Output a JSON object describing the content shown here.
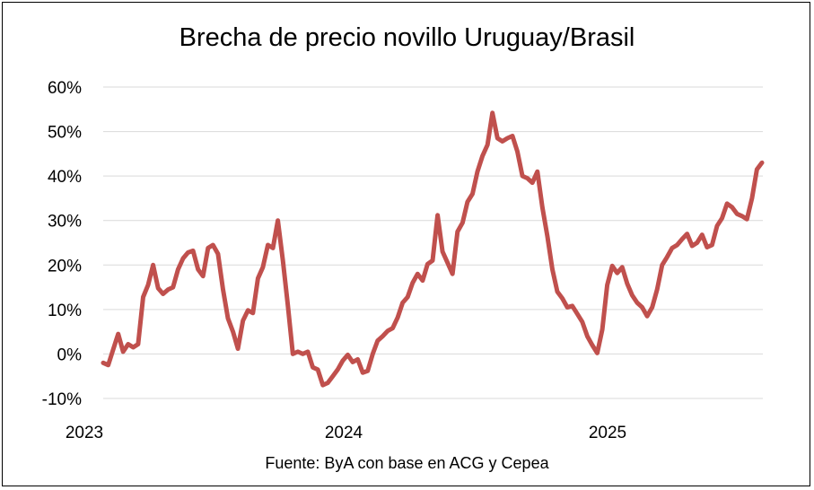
{
  "chart_data": {
    "type": "line",
    "title": "Brecha de precio novillo Uruguay/Brasil",
    "source": "Fuente: ByA con base en ACG y Cepea",
    "xlabel": "",
    "ylabel": "",
    "y_ticks": [
      "60%",
      "50%",
      "40%",
      "30%",
      "20%",
      "10%",
      "0%",
      "-10%"
    ],
    "y_tick_values": [
      60,
      50,
      40,
      30,
      20,
      10,
      0,
      -10
    ],
    "x_ticks": [
      "2023",
      "2024",
      "2025"
    ],
    "ylim": [
      -10,
      60
    ],
    "grid": true,
    "line_color": "#C0504D",
    "series": [
      {
        "values": [
          -2,
          -2.5,
          1,
          4.5,
          0.5,
          2.2,
          1.5,
          2.2,
          12.8,
          15.5,
          20,
          14.8,
          13.5,
          14.5,
          15,
          19,
          21.5,
          22.8,
          23.2,
          19,
          17.5,
          23.8,
          24.5,
          22.5,
          14.5,
          8,
          5,
          1.2,
          7.5,
          9.8,
          9.2,
          17,
          19.5,
          24.5,
          23.8,
          30,
          21,
          11,
          0,
          0.5,
          0,
          0.5,
          -3,
          -3.5,
          -7,
          -6.5,
          -5,
          -3.5,
          -1.5,
          -0.2,
          -1.8,
          -1.2,
          -4.2,
          -3.8,
          0,
          3,
          4,
          5.2,
          5.8,
          8.2,
          11.5,
          12.8,
          16,
          18,
          16.5,
          20.2,
          21,
          31.2,
          23,
          20.5,
          18,
          27.5,
          29.5,
          34.2,
          36,
          41,
          44.5,
          47,
          54.2,
          48.5,
          47.8,
          48.5,
          49,
          45.5,
          40,
          39.5,
          38.5,
          41,
          33,
          26.5,
          19,
          14,
          12.5,
          10.5,
          10.8,
          9,
          7.2,
          4,
          2,
          0.2,
          5.5,
          15.5,
          19.8,
          18.2,
          19.5,
          15.8,
          13.2,
          11.5,
          10.5,
          8.5,
          10.5,
          14.5,
          20,
          21.8,
          23.8,
          24.5,
          25.8,
          27,
          24.3,
          25,
          26.8,
          24,
          24.5,
          28.8,
          30.5,
          33.8,
          33,
          31.5,
          31,
          30.3,
          35,
          41.5,
          43
        ]
      }
    ]
  }
}
